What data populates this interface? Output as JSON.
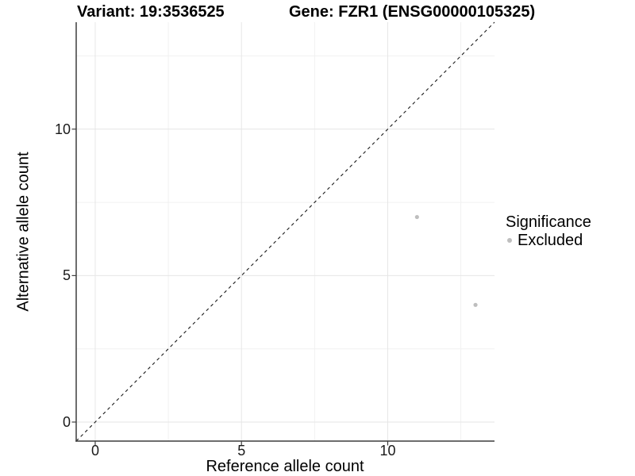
{
  "chart_data": {
    "type": "scatter",
    "title_left": "Variant: 19:3536525",
    "title_right": "Gene: FZR1 (ENSG00000105325)",
    "xlabel": "Reference allele count",
    "ylabel": "Alternative allele count",
    "xlim": [
      -0.65,
      13.65
    ],
    "ylim": [
      -0.65,
      13.65
    ],
    "xticks": [
      0,
      5,
      10
    ],
    "yticks": [
      0,
      5,
      10
    ],
    "minor_ticks": [
      2.5,
      7.5,
      12.5
    ],
    "grid": true,
    "legend_position": "right",
    "identity_line": {
      "slope": 1,
      "intercept": 0,
      "style": "dashed"
    },
    "legend": {
      "title": "Significance",
      "items": [
        {
          "label": "Excluded",
          "color": "#BEBEBE"
        }
      ]
    },
    "series": [
      {
        "name": "Excluded",
        "color": "#BEBEBE",
        "points": [
          {
            "x": 11,
            "y": 7
          },
          {
            "x": 13,
            "y": 4
          }
        ]
      }
    ]
  },
  "colors": {
    "background": "#FFFFFF",
    "point": "#BEBEBE",
    "grid_major": "#E6E6E6",
    "grid_minor": "#F1F1F1",
    "axis_line": "#3D3D3D",
    "identity_line": "#1A1A1A",
    "text": "#000000"
  }
}
